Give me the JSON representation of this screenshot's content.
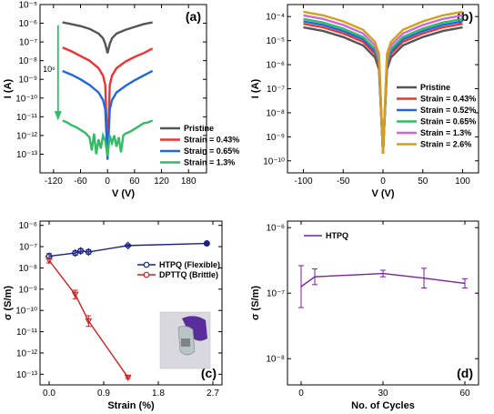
{
  "chart_data": [
    {
      "id": "a",
      "type": "line",
      "panel_label": "(a)",
      "xlabel": "V (V)",
      "ylabel": "I (A)",
      "xlim": [
        -150,
        220
      ],
      "ylim_log10": [
        -14,
        -5
      ],
      "xticks": [
        -120,
        -60,
        0,
        60,
        120,
        180
      ],
      "xtick_labels": [
        "-120",
        "-60",
        "0",
        "60",
        "120",
        "180"
      ],
      "yticks": [
        -13,
        -12,
        -11,
        -10,
        -9,
        -8,
        -7,
        -6,
        -5
      ],
      "ytick_labels": [
        "10⁻¹³",
        "10⁻¹²",
        "10⁻¹¹",
        "10⁻¹⁰",
        "10⁻⁹",
        "10⁻⁸",
        "10⁻⁷",
        "10⁻⁶",
        "10⁻⁵"
      ],
      "annotation": "10⁶",
      "legend_position": "bottom-right",
      "series": [
        {
          "name": "Pristine",
          "color": "#555555",
          "x": [
            -100,
            -80,
            -60,
            -40,
            -20,
            -10,
            -5,
            0,
            5,
            10,
            20,
            40,
            60,
            80,
            100
          ],
          "y": [
            -5.95,
            -6.05,
            -6.15,
            -6.3,
            -6.55,
            -6.8,
            -7.1,
            -7.6,
            -7.1,
            -6.8,
            -6.55,
            -6.35,
            -6.2,
            -6.05,
            -5.95
          ]
        },
        {
          "name": "Strain = 0.43%",
          "color": "#ee3333",
          "x": [
            -100,
            -80,
            -60,
            -40,
            -20,
            -10,
            -5,
            0,
            5,
            10,
            20,
            40,
            60,
            80,
            100
          ],
          "y": [
            -7.3,
            -7.5,
            -7.75,
            -8.0,
            -8.4,
            -8.8,
            -9.3,
            -13.0,
            -9.3,
            -8.8,
            -8.4,
            -8.05,
            -7.8,
            -7.6,
            -7.35
          ]
        },
        {
          "name": "Strain = 0.65%",
          "color": "#2266dd",
          "x": [
            -100,
            -80,
            -60,
            -40,
            -20,
            -10,
            -5,
            0,
            5,
            10,
            20,
            40,
            60,
            80,
            100
          ],
          "y": [
            -8.55,
            -8.75,
            -9.0,
            -9.3,
            -9.7,
            -10.1,
            -10.6,
            -13.3,
            -10.6,
            -10.1,
            -9.7,
            -9.35,
            -9.05,
            -8.8,
            -8.55
          ]
        },
        {
          "name": "Strain = 1.3%",
          "color": "#33bb66",
          "x": [
            -100,
            -90,
            -80,
            -70,
            -60,
            -50,
            -40,
            -35,
            -30,
            -25,
            -20,
            -15,
            -10,
            -5,
            0,
            5,
            10,
            15,
            20,
            25,
            30,
            35,
            40,
            50,
            60,
            70,
            80,
            90,
            100
          ],
          "y": [
            -11.2,
            -11.3,
            -11.45,
            -11.55,
            -11.7,
            -11.85,
            -12.1,
            -12.8,
            -11.9,
            -13.0,
            -12.2,
            -12.7,
            -12.0,
            -12.3,
            -13.1,
            -12.0,
            -12.4,
            -12.0,
            -12.6,
            -12.1,
            -12.9,
            -12.0,
            -11.9,
            -11.8,
            -11.65,
            -11.5,
            -11.35,
            -11.3,
            -11.2
          ]
        }
      ]
    },
    {
      "id": "b",
      "type": "line",
      "panel_label": "(b)",
      "xlabel": "V (V)",
      "ylabel": "I (A)",
      "xlim": [
        -120,
        120
      ],
      "ylim_log10": [
        -10.5,
        -3.5
      ],
      "xticks": [
        -100,
        -50,
        0,
        50,
        100
      ],
      "xtick_labels": [
        "-100",
        "-50",
        "0",
        "50",
        "100"
      ],
      "yticks": [
        -10,
        -9,
        -8,
        -7,
        -6,
        -5,
        -4
      ],
      "ytick_labels": [
        "10⁻¹⁰",
        "10⁻⁹",
        "10⁻⁸",
        "10⁻⁷",
        "10⁻⁶",
        "10⁻⁵",
        "10⁻⁴"
      ],
      "legend_position": "bottom-right",
      "series": [
        {
          "name": "Pristine",
          "color": "#555555",
          "x": [
            -100,
            -75,
            -50,
            -25,
            -10,
            -5,
            0,
            5,
            10,
            25,
            50,
            75,
            100
          ],
          "y": [
            -4.45,
            -4.6,
            -4.85,
            -5.2,
            -5.7,
            -6.2,
            -9.7,
            -6.2,
            -5.7,
            -5.2,
            -4.85,
            -4.6,
            -4.45
          ]
        },
        {
          "name": "Strain = 0.43%",
          "color": "#ee3333",
          "x": [
            -100,
            -75,
            -50,
            -25,
            -10,
            -5,
            0,
            5,
            10,
            25,
            50,
            75,
            100
          ],
          "y": [
            -4.3,
            -4.45,
            -4.7,
            -5.05,
            -5.55,
            -6.05,
            -9.7,
            -6.05,
            -5.55,
            -5.05,
            -4.7,
            -4.45,
            -4.3
          ]
        },
        {
          "name": "Strain = 0.52%",
          "color": "#2266dd",
          "x": [
            -100,
            -75,
            -50,
            -25,
            -10,
            -5,
            0,
            5,
            10,
            25,
            50,
            75,
            100
          ],
          "y": [
            -4.2,
            -4.35,
            -4.6,
            -4.95,
            -5.45,
            -5.95,
            -9.7,
            -5.95,
            -5.45,
            -4.95,
            -4.6,
            -4.35,
            -4.2
          ]
        },
        {
          "name": "Strain = 0.65%",
          "color": "#33bb66",
          "x": [
            -100,
            -75,
            -50,
            -25,
            -10,
            -5,
            0,
            5,
            10,
            25,
            50,
            75,
            100
          ],
          "y": [
            -4.1,
            -4.25,
            -4.5,
            -4.85,
            -5.35,
            -5.85,
            -9.7,
            -5.85,
            -5.35,
            -4.85,
            -4.5,
            -4.25,
            -4.1
          ]
        },
        {
          "name": "Strain = 1.3%",
          "color": "#cc66dd",
          "x": [
            -100,
            -75,
            -50,
            -25,
            -10,
            -5,
            0,
            5,
            10,
            25,
            50,
            75,
            100
          ],
          "y": [
            -3.95,
            -4.1,
            -4.35,
            -4.7,
            -5.2,
            -5.7,
            -9.7,
            -5.7,
            -5.2,
            -4.7,
            -4.35,
            -4.1,
            -3.95
          ]
        },
        {
          "name": "Strain = 2.6%",
          "color": "#d4a017",
          "x": [
            -100,
            -75,
            -50,
            -25,
            -10,
            -5,
            0,
            5,
            10,
            25,
            50,
            75,
            100
          ],
          "y": [
            -3.8,
            -3.95,
            -4.2,
            -4.55,
            -5.05,
            -5.55,
            -9.7,
            -5.55,
            -5.05,
            -4.55,
            -4.2,
            -3.95,
            -3.8
          ]
        }
      ]
    },
    {
      "id": "c",
      "type": "scatter",
      "panel_label": "(c)",
      "xlabel": "Strain (%)",
      "ylabel": "σ (S/m)",
      "xlim": [
        -0.15,
        2.85
      ],
      "ylim_log10": [
        -13.5,
        -5.8
      ],
      "xticks": [
        0.0,
        0.9,
        1.8,
        2.7
      ],
      "xtick_labels": [
        "0.0",
        "0.9",
        "1.8",
        "2.7"
      ],
      "yticks": [
        -13,
        -12,
        -11,
        -10,
        -9,
        -8,
        -7,
        -6
      ],
      "ytick_labels": [
        "10⁻¹³",
        "10⁻¹²",
        "10⁻¹¹",
        "10⁻¹⁰",
        "10⁻⁹",
        "10⁻⁸",
        "10⁻⁷",
        "10⁻⁶"
      ],
      "legend_position": "center-right",
      "series": [
        {
          "name": "HTPQ (Flexible)",
          "color": "#1a237e",
          "x": [
            0.0,
            0.43,
            0.52,
            0.65,
            1.3,
            2.6
          ],
          "y": [
            -7.45,
            -7.3,
            -7.2,
            -7.25,
            -6.95,
            -6.85
          ],
          "err": [
            0.12,
            0.1,
            0.1,
            0.1,
            0.05,
            0.05
          ]
        },
        {
          "name": "DPTTQ (Brittle)",
          "color": "#cc2222",
          "x": [
            0.0,
            0.43,
            0.65,
            1.3
          ],
          "y": [
            -7.65,
            -9.25,
            -10.5,
            -13.15
          ],
          "err": [
            0.12,
            0.2,
            0.25,
            0.05
          ]
        }
      ]
    },
    {
      "id": "d",
      "type": "scatter",
      "panel_label": "(d)",
      "xlabel": "No. of Cycles",
      "ylabel": "σ (S/m)",
      "xlim": [
        -5,
        65
      ],
      "ylim_log10": [
        -8.4,
        -5.9
      ],
      "xticks": [
        0,
        30,
        60
      ],
      "xtick_labels": [
        "0",
        "30",
        "60"
      ],
      "yticks": [
        -8,
        -7,
        -6
      ],
      "ytick_labels": [
        "10⁻⁸",
        "10⁻⁷",
        "10⁻⁶"
      ],
      "legend_position": "top-left",
      "series": [
        {
          "name": "HTPQ",
          "color": "#7b1fa2",
          "x": [
            0,
            5,
            30,
            45,
            60
          ],
          "y": [
            -6.9,
            -6.75,
            -6.7,
            -6.77,
            -6.85
          ],
          "err": [
            0.32,
            0.12,
            0.05,
            0.15,
            0.07
          ]
        }
      ]
    }
  ]
}
